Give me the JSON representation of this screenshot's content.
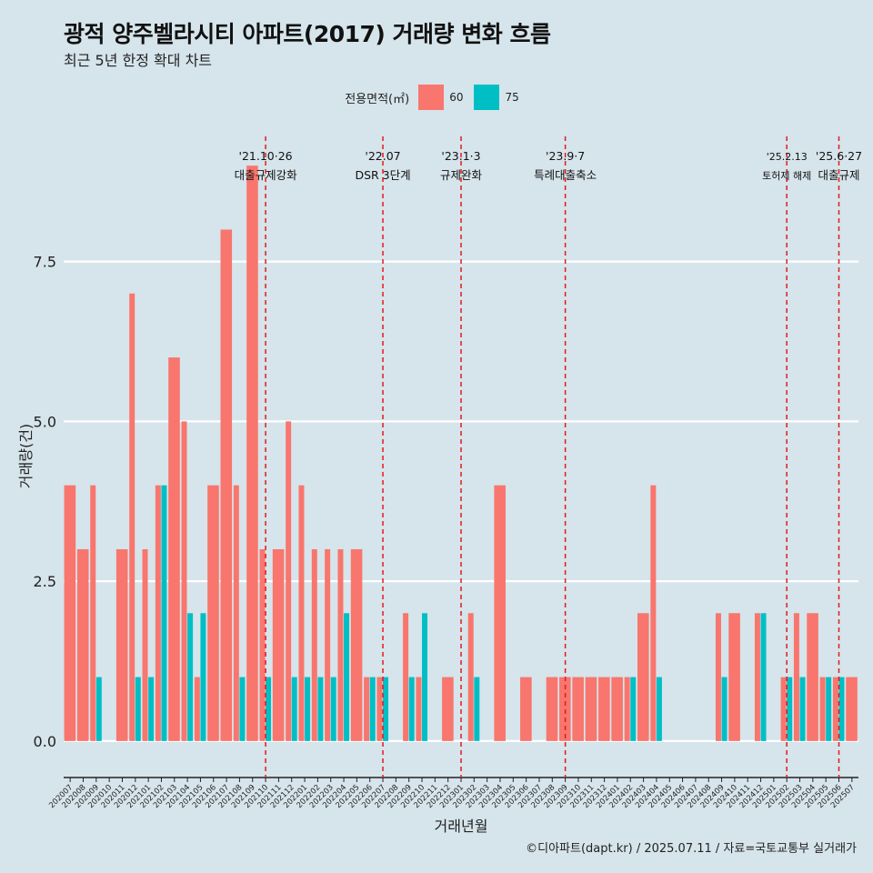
{
  "title": "광적 양주벨라시티 아파트(2017) 거래량 변화 흐름",
  "subtitle": "최근 5년 한정 확대 차트",
  "caption": "©디아파트(dapt.kr) / 2025.07.11 / 자료=국토교통부 실거래가",
  "legend": {
    "title": "전용면적(㎡)",
    "items": [
      {
        "label": "60",
        "color": "#f8766d"
      },
      {
        "label": "75",
        "color": "#00bfc4"
      }
    ]
  },
  "chart_data": {
    "type": "bar",
    "title": "광적 양주벨라시티 아파트(2017) 거래량 변화 흐름",
    "xlabel": "거래년월",
    "ylabel": "거래량(건)",
    "ylim": [
      -0.4,
      9.6
    ],
    "yticks": [
      0,
      2.5,
      5,
      7.5
    ],
    "ytick_labels": [
      "0.0",
      "2.5",
      "5.0",
      "7.5"
    ],
    "categories": [
      "202007",
      "202008",
      "202009",
      "202010",
      "202011",
      "202012",
      "202101",
      "202102",
      "202103",
      "202104",
      "202105",
      "202106",
      "202107",
      "202108",
      "202109",
      "202110",
      "202111",
      "202112",
      "202201",
      "202202",
      "202203",
      "202204",
      "202205",
      "202206",
      "202207",
      "202208",
      "202209",
      "202210",
      "202211",
      "202212",
      "202301",
      "202302",
      "202303",
      "202304",
      "202305",
      "202306",
      "202307",
      "202308",
      "202309",
      "202310",
      "202311",
      "202312",
      "202401",
      "202402",
      "202403",
      "202404",
      "202405",
      "202406",
      "202407",
      "202408",
      "202409",
      "202410",
      "202411",
      "202412",
      "202501",
      "202502",
      "202503",
      "202504",
      "202505",
      "202506",
      "202507"
    ],
    "series": [
      {
        "name": "60",
        "color": "#f8766d",
        "values": [
          4,
          3,
          4,
          0,
          3,
          7,
          3,
          4,
          6,
          5,
          1,
          4,
          8,
          4,
          9,
          3,
          3,
          5,
          4,
          3,
          3,
          3,
          3,
          1,
          1,
          0,
          2,
          1,
          0,
          1,
          0,
          2,
          0,
          4,
          0,
          1,
          0,
          1,
          1,
          1,
          1,
          1,
          1,
          1,
          2,
          4,
          0,
          0,
          0,
          0,
          2,
          2,
          0,
          2,
          0,
          1,
          2,
          2,
          1,
          1,
          1
        ]
      },
      {
        "name": "75",
        "color": "#00bfc4",
        "values": [
          0,
          0,
          1,
          0,
          0,
          1,
          1,
          4,
          0,
          2,
          2,
          0,
          0,
          1,
          0,
          1,
          0,
          1,
          1,
          1,
          1,
          2,
          0,
          1,
          1,
          0,
          1,
          2,
          0,
          0,
          0,
          1,
          0,
          0,
          0,
          0,
          0,
          0,
          0,
          0,
          0,
          0,
          0,
          1,
          0,
          1,
          0,
          0,
          0,
          0,
          1,
          0,
          0,
          2,
          0,
          1,
          1,
          0,
          1,
          1,
          0
        ]
      }
    ],
    "events": [
      {
        "date": "'21.10·26",
        "label": "대출규제강화",
        "x_index": 15.5,
        "small": false
      },
      {
        "date": "'22.07",
        "label": "DSR 3단계",
        "x_index": 24.5,
        "small": false
      },
      {
        "date": "'23.1·3",
        "label": "규제완화",
        "x_index": 30.5,
        "small": false
      },
      {
        "date": "'23.9·7",
        "label": "특례대출축소",
        "x_index": 38.5,
        "small": false
      },
      {
        "date": "'25.2.13",
        "label": "토허제 해제",
        "x_index": 55.5,
        "small": true
      },
      {
        "date": "'25.6·27",
        "label": "대출규제",
        "x_index": 59.5,
        "small": false
      }
    ],
    "event_color": "#e41a1c"
  }
}
